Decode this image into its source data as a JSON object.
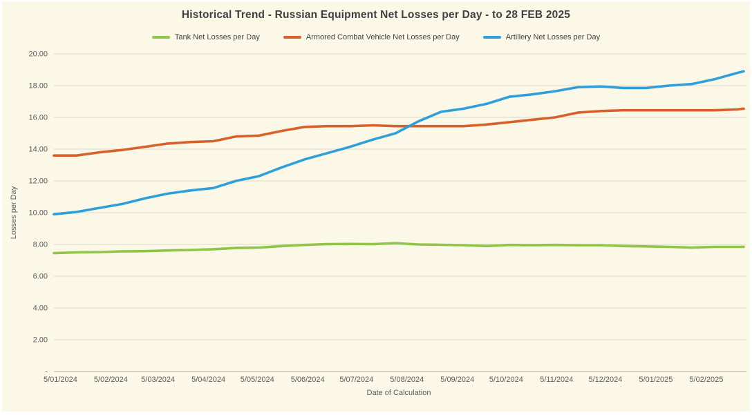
{
  "chart": {
    "background_color": "#FCF8E7",
    "outer_border_color": "#FFFFFF",
    "grid_color": "#DCD9CC",
    "axis_line_color": "#BFBCAE",
    "tick_text_color": "#595959",
    "title_color": "#3F3F3F"
  },
  "chart_data": {
    "type": "line",
    "title": "Historical Trend - Russian Equipment Net Losses per Day - to 28 FEB 2025",
    "xlabel": "Date of Calculation",
    "ylabel": "Losses per Day",
    "ylim": [
      0,
      20
    ],
    "y_tick_step": 2,
    "y_tick_labels_top_to_bottom": [
      "20.00",
      "18.00",
      "16.00",
      "14.00",
      "12.00",
      "10.00",
      "8.00",
      "6.00",
      "4.00",
      "2.00",
      "-"
    ],
    "grid": true,
    "legend_position": "top",
    "x_tick_labels": [
      "5/01/2024",
      "5/02/2024",
      "5/03/2024",
      "5/04/2024",
      "5/05/2024",
      "5/06/2024",
      "5/07/2024",
      "5/08/2024",
      "5/09/2024",
      "5/10/2024",
      "5/11/2024",
      "5/12/2024",
      "5/01/2025",
      "5/02/2025"
    ],
    "x_tick_day_offsets": [
      4,
      35,
      64,
      95,
      125,
      156,
      186,
      217,
      248,
      278,
      309,
      339,
      370,
      401
    ],
    "x_total_days": 424,
    "x_dates": [
      "1/1/2024",
      "1/15/2024",
      "1/29/2024",
      "2/12/2024",
      "2/26/2024",
      "3/11/2024",
      "3/25/2024",
      "4/8/2024",
      "4/22/2024",
      "5/6/2024",
      "5/20/2024",
      "6/3/2024",
      "6/17/2024",
      "7/1/2024",
      "7/15/2024",
      "7/29/2024",
      "8/12/2024",
      "8/26/2024",
      "9/9/2024",
      "9/23/2024",
      "10/7/2024",
      "10/21/2024",
      "11/4/2024",
      "11/18/2024",
      "12/2/2024",
      "12/16/2024",
      "12/30/2024",
      "1/13/2025",
      "1/27/2025",
      "2/10/2025",
      "2/24/2025",
      "2/28/2025"
    ],
    "x_day_offsets": [
      0,
      14,
      28,
      42,
      56,
      70,
      84,
      98,
      112,
      126,
      140,
      154,
      168,
      182,
      196,
      210,
      224,
      238,
      252,
      266,
      280,
      294,
      308,
      322,
      336,
      350,
      364,
      378,
      392,
      406,
      420,
      424
    ],
    "series": [
      {
        "name": "Tank Net Losses per Day",
        "color": "#8FC549",
        "values": [
          7.45,
          7.5,
          7.52,
          7.56,
          7.58,
          7.62,
          7.65,
          7.7,
          7.78,
          7.8,
          7.9,
          7.97,
          8.02,
          8.03,
          8.02,
          8.08,
          8.0,
          7.98,
          7.95,
          7.9,
          7.97,
          7.95,
          7.97,
          7.95,
          7.95,
          7.9,
          7.88,
          7.85,
          7.8,
          7.85,
          7.85,
          7.85
        ]
      },
      {
        "name": "Armored Combat Vehicle Net Losses per Day",
        "color": "#D8612B",
        "values": [
          13.6,
          13.6,
          13.8,
          13.95,
          14.15,
          14.35,
          14.45,
          14.5,
          14.8,
          14.85,
          15.15,
          15.4,
          15.45,
          15.45,
          15.5,
          15.45,
          15.45,
          15.45,
          15.45,
          15.55,
          15.7,
          15.85,
          16.0,
          16.3,
          16.4,
          16.45,
          16.45,
          16.45,
          16.45,
          16.45,
          16.5,
          16.55
        ]
      },
      {
        "name": "Artillery Net Losses per Day",
        "color": "#2E9FDA",
        "values": [
          9.9,
          10.05,
          10.3,
          10.55,
          10.9,
          11.2,
          11.4,
          11.55,
          12.0,
          12.3,
          12.85,
          13.35,
          13.75,
          14.15,
          14.6,
          15.0,
          15.75,
          16.35,
          16.55,
          16.85,
          17.3,
          17.45,
          17.65,
          17.9,
          17.95,
          17.85,
          17.85,
          18.0,
          18.1,
          18.4,
          18.8,
          18.9
        ]
      }
    ]
  }
}
